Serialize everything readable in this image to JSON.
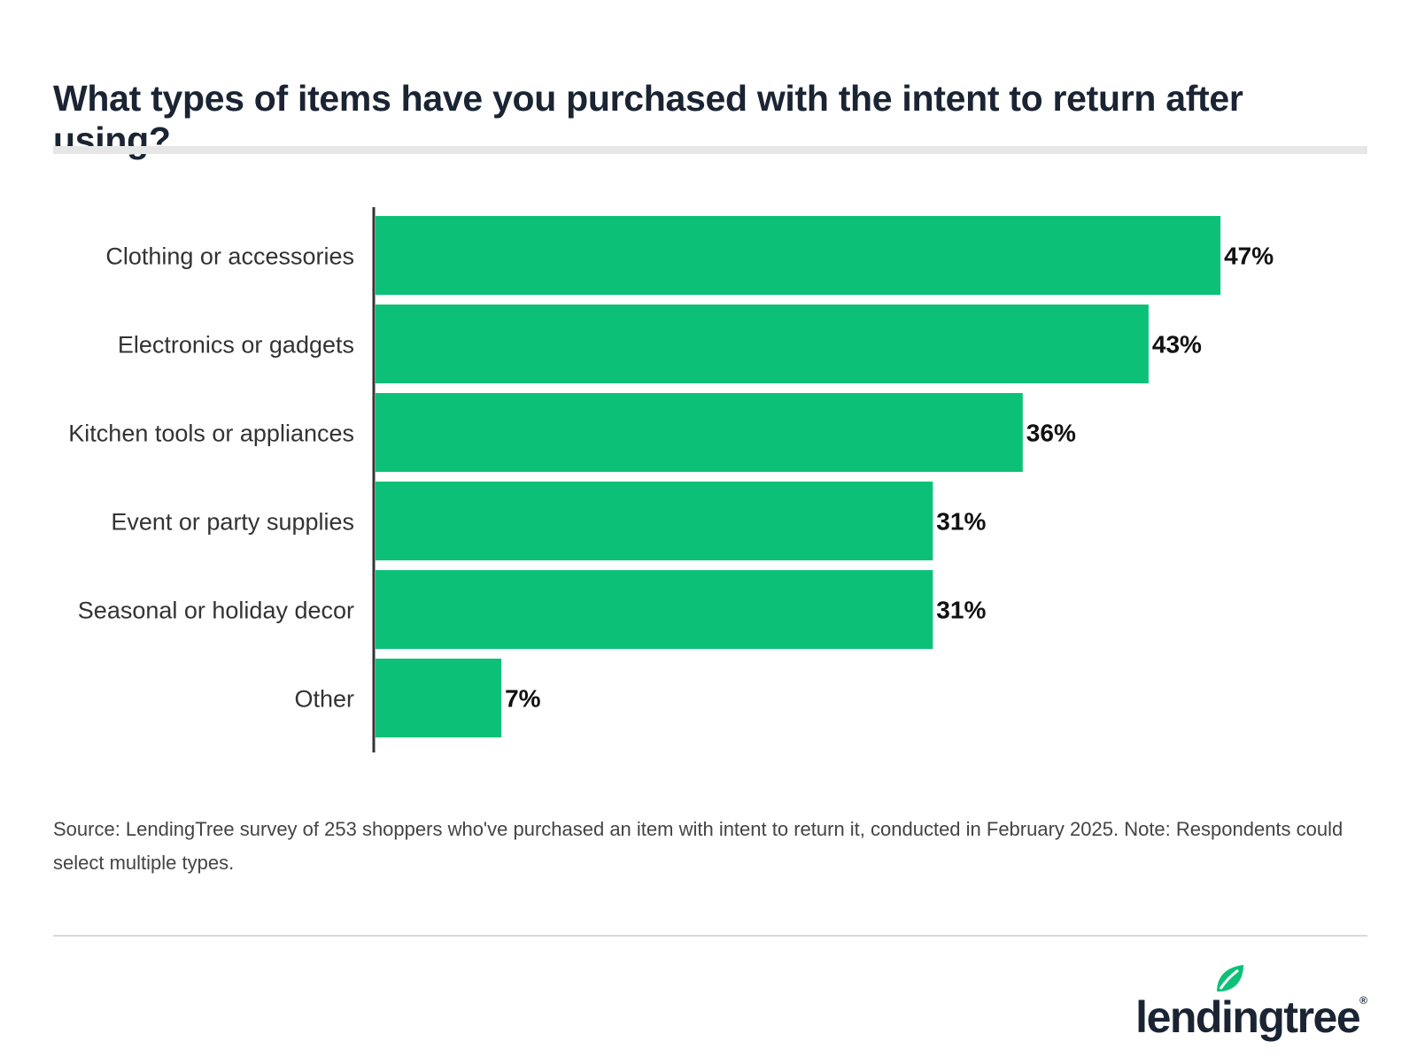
{
  "title": "What types of items have you purchased with the intent to return after using?",
  "source_text": "Source: LendingTree survey of 253 shoppers who've purchased an item with intent to return it, conducted in February 2025. Note: Respondents could select multiple types.",
  "logo": {
    "word": "lendingtree",
    "registered": "®",
    "icon": "leaf-icon"
  },
  "colors": {
    "bar": "#0cc177",
    "axis": "#333333",
    "title": "#1a2433",
    "logo_leaf": "#0cc177"
  },
  "chart_data": {
    "type": "bar",
    "orientation": "horizontal",
    "categories": [
      "Clothing or accessories",
      "Electronics or gadgets",
      "Kitchen tools or appliances",
      "Event or party supplies",
      "Seasonal or holiday decor",
      "Other"
    ],
    "values": [
      47,
      43,
      36,
      31,
      31,
      7
    ],
    "value_labels": [
      "47%",
      "43%",
      "36%",
      "31%",
      "31%",
      "7%"
    ],
    "unit": "%",
    "xlim": [
      0,
      50
    ],
    "grid": false,
    "legend": "none"
  }
}
